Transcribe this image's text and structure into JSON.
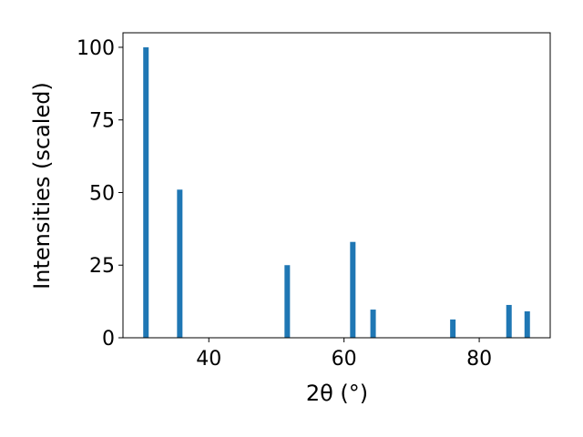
{
  "chart_data": {
    "type": "bar",
    "x_label": "2θ (°)",
    "y_label": "Intensities (scaled)",
    "x": [
      30.7,
      35.7,
      51.6,
      61.3,
      64.3,
      76.1,
      84.4,
      87.1
    ],
    "values": [
      100,
      51,
      25,
      33,
      9.7,
      6.3,
      11.3,
      9.1
    ],
    "color": "#1f77b4",
    "xlim": [
      27.3,
      90.5
    ],
    "ylim": [
      0,
      105
    ],
    "xticks": [
      40,
      60,
      80
    ],
    "yticks": [
      0,
      25,
      50,
      75,
      100
    ],
    "grid": false
  }
}
